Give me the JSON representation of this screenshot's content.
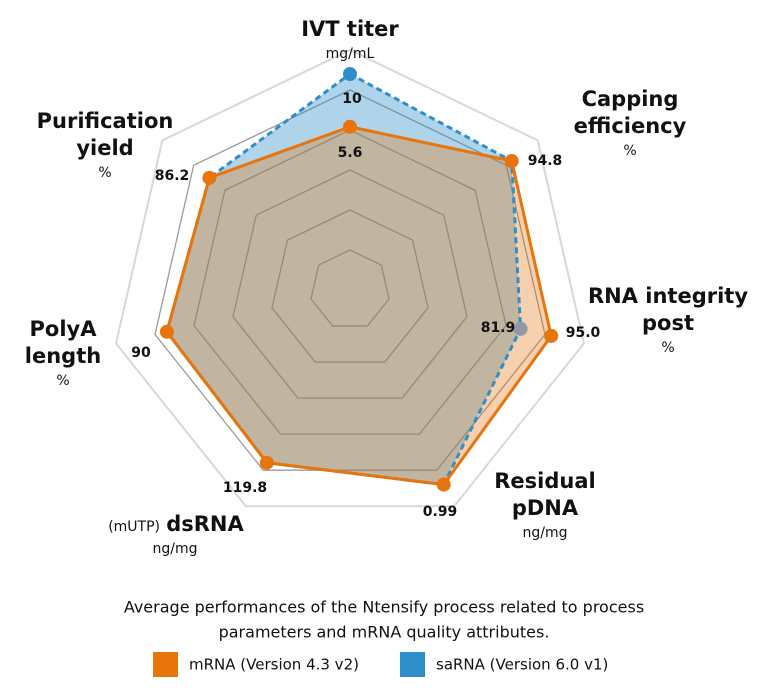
{
  "chart_data": {
    "type": "radar",
    "axes": [
      {
        "label": [
          "IVT titer"
        ],
        "unit": "mg/mL",
        "range": [
          -8,
          12
        ]
      },
      {
        "label": [
          "Capping",
          "efficiency"
        ],
        "unit": "%",
        "range": [
          0,
          110
        ]
      },
      {
        "label": [
          "RNA integrity",
          "post"
        ],
        "unit": "%",
        "range": [
          9,
          109
        ]
      },
      {
        "label": [
          "Residual",
          "pDNA"
        ],
        "unit": "ng/mg",
        "range": [
          0,
          1.1
        ]
      },
      {
        "prefix": "(mUTP)",
        "label": [
          "dsRNA"
        ],
        "unit": "ng/mg",
        "range": [
          0,
          150
        ]
      },
      {
        "label": [
          "PolyA",
          "length"
        ],
        "unit": "%",
        "range": [
          0,
          115
        ]
      },
      {
        "label": [
          "Purification",
          "yield"
        ],
        "unit": "%",
        "range": [
          0,
          115
        ]
      }
    ],
    "series": [
      {
        "name": "saRNA (Version 6.0 v1)",
        "color": "#2e8fc8",
        "dashed": true,
        "values": [
          10,
          94.8,
          81.9,
          0.99,
          119.8,
          90,
          86.2
        ],
        "value_labels": [
          "10",
          null,
          "81.9",
          null,
          null,
          null,
          null
        ]
      },
      {
        "name": "mRNA (Version 4.3 v2)",
        "color": "#e8740c",
        "dashed": false,
        "values": [
          5.6,
          94.8,
          95,
          0.99,
          119.8,
          90,
          86.2
        ],
        "value_labels": [
          "5.6",
          "94.8",
          "95.0",
          "0.99",
          "119.8",
          "90",
          "86.2"
        ]
      }
    ],
    "grid": true,
    "caption": [
      "Average performances of the Ntensify process related to process",
      "parameters and mRNA quality attributes."
    ]
  }
}
